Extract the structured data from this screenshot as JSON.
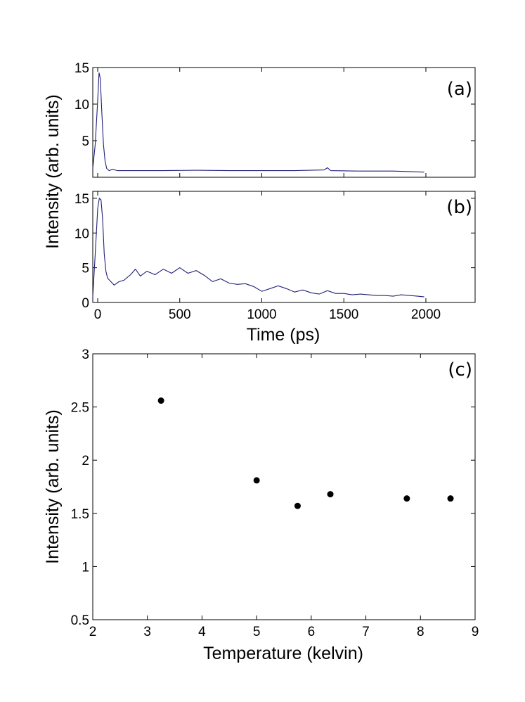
{
  "chart_data": [
    {
      "id": "a",
      "type": "line",
      "panel_label": "(a)",
      "ylabel": "Intensity (arb. units)",
      "xlabel": "",
      "xlim": [
        -30,
        2300
      ],
      "ylim": [
        0,
        15
      ],
      "yticks": [
        5,
        10,
        15
      ],
      "ytick_labels": [
        "5",
        "10",
        "15"
      ],
      "xticks": [
        0,
        500,
        1000,
        1500,
        2000
      ],
      "xtick_labels": [],
      "color": "#1f1f7a",
      "x": [
        -30,
        -15,
        0,
        8,
        16,
        25,
        35,
        45,
        55,
        70,
        90,
        120,
        200,
        400,
        600,
        800,
        1000,
        1200,
        1380,
        1400,
        1420,
        1600,
        1800,
        1990
      ],
      "y": [
        1.2,
        4.5,
        10.5,
        14.3,
        13.5,
        9.0,
        4.5,
        2.2,
        1.2,
        0.9,
        1.1,
        0.9,
        0.9,
        0.9,
        0.95,
        0.9,
        0.9,
        0.9,
        1.0,
        1.3,
        0.9,
        0.85,
        0.85,
        0.7
      ]
    },
    {
      "id": "b",
      "type": "line",
      "panel_label": "(b)",
      "ylabel": "",
      "xlabel": "Time (ps)",
      "xlim": [
        -30,
        2300
      ],
      "ylim": [
        0,
        16
      ],
      "yticks": [
        0,
        5,
        10,
        15
      ],
      "ytick_labels": [
        "0",
        "5",
        "10",
        "15"
      ],
      "xticks": [
        0,
        500,
        1000,
        1500,
        2000
      ],
      "xtick_labels": [
        "0",
        "500",
        "1000",
        "1500",
        "2000"
      ],
      "color": "#1f1f7a",
      "x": [
        -30,
        -15,
        0,
        10,
        20,
        30,
        40,
        50,
        60,
        80,
        100,
        130,
        160,
        200,
        230,
        260,
        300,
        350,
        400,
        450,
        500,
        550,
        600,
        650,
        700,
        750,
        800,
        850,
        900,
        950,
        1000,
        1050,
        1100,
        1150,
        1200,
        1250,
        1300,
        1350,
        1400,
        1450,
        1500,
        1550,
        1600,
        1650,
        1700,
        1750,
        1800,
        1850,
        1900,
        1950,
        1990
      ],
      "y": [
        0.8,
        7.0,
        13.5,
        15.0,
        14.8,
        12.0,
        7.0,
        4.5,
        3.5,
        3.0,
        2.5,
        3.0,
        3.2,
        4.0,
        4.8,
        3.8,
        4.5,
        4.0,
        4.8,
        4.2,
        5.0,
        4.2,
        4.6,
        3.9,
        3.0,
        3.4,
        2.8,
        2.6,
        2.7,
        2.3,
        1.6,
        2.0,
        2.4,
        2.0,
        1.5,
        1.8,
        1.4,
        1.2,
        1.7,
        1.3,
        1.3,
        1.1,
        1.2,
        1.1,
        1.0,
        1.0,
        0.9,
        1.1,
        1.0,
        0.9,
        0.8
      ]
    },
    {
      "id": "c",
      "type": "scatter",
      "panel_label": "(c)",
      "ylabel": "Intensity (arb. units)",
      "xlabel": "Temperature (kelvin)",
      "xlim": [
        2,
        9
      ],
      "ylim": [
        0.5,
        3
      ],
      "yticks": [
        0.5,
        1,
        1.5,
        2,
        2.5,
        3
      ],
      "ytick_labels": [
        "0.5",
        "1",
        "1.5",
        "2",
        "2.5",
        "3"
      ],
      "xticks": [
        2,
        3,
        4,
        5,
        6,
        7,
        8,
        9
      ],
      "xtick_labels": [
        "2",
        "3",
        "4",
        "5",
        "6",
        "7",
        "8",
        "9"
      ],
      "color": "#000000",
      "x": [
        3.25,
        5.0,
        5.75,
        6.35,
        7.75,
        8.55
      ],
      "y": [
        2.56,
        1.81,
        1.57,
        1.68,
        1.64,
        1.64
      ]
    }
  ]
}
